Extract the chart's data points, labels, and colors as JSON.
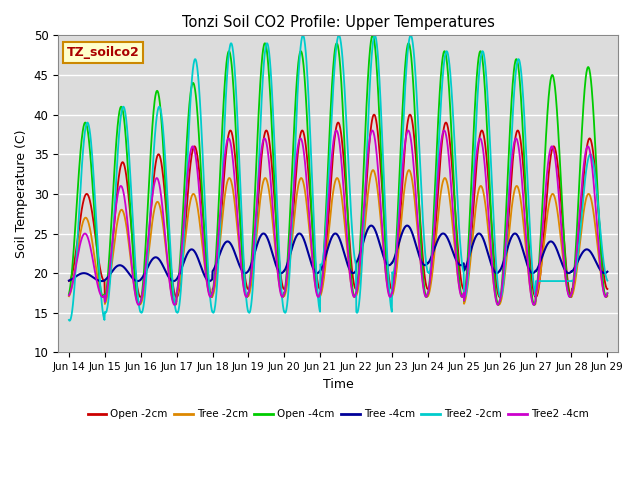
{
  "title": "Tonzi Soil CO2 Profile: Upper Temperatures",
  "xlabel": "Time",
  "ylabel": "Soil Temperature (C)",
  "ylim": [
    10,
    50
  ],
  "xlim": [
    -0.3,
    15.3
  ],
  "bg_color": "#dcdcdc",
  "annotation_text": "TZ_soilco2",
  "annotation_bg": "#ffffcc",
  "annotation_border": "#cc8800",
  "series": [
    {
      "label": "Open -2cm",
      "color": "#cc0000"
    },
    {
      "label": "Tree -2cm",
      "color": "#dd8800"
    },
    {
      "label": "Open -4cm",
      "color": "#00cc00"
    },
    {
      "label": "Tree -4cm",
      "color": "#000099"
    },
    {
      "label": "Tree2 -2cm",
      "color": "#00cccc"
    },
    {
      "label": "Tree2 -4cm",
      "color": "#cc00cc"
    }
  ],
  "xtick_labels": [
    "Jun 14",
    "Jun 15",
    "Jun 16",
    "Jun 17",
    "Jun 18",
    "Jun 19",
    "Jun 20",
    "Jun 21",
    "Jun 22",
    "Jun 23",
    "Jun 24",
    "Jun 25",
    "Jun 26",
    "Jun 27",
    "Jun 28",
    "Jun 29"
  ],
  "xtick_positions": [
    0,
    1,
    2,
    3,
    4,
    5,
    6,
    7,
    8,
    9,
    10,
    11,
    12,
    13,
    14,
    15
  ],
  "ytick_labels": [
    "10",
    "15",
    "20",
    "25",
    "30",
    "35",
    "40",
    "45",
    "50"
  ],
  "ytick_positions": [
    10,
    15,
    20,
    25,
    30,
    35,
    40,
    45,
    50
  ]
}
